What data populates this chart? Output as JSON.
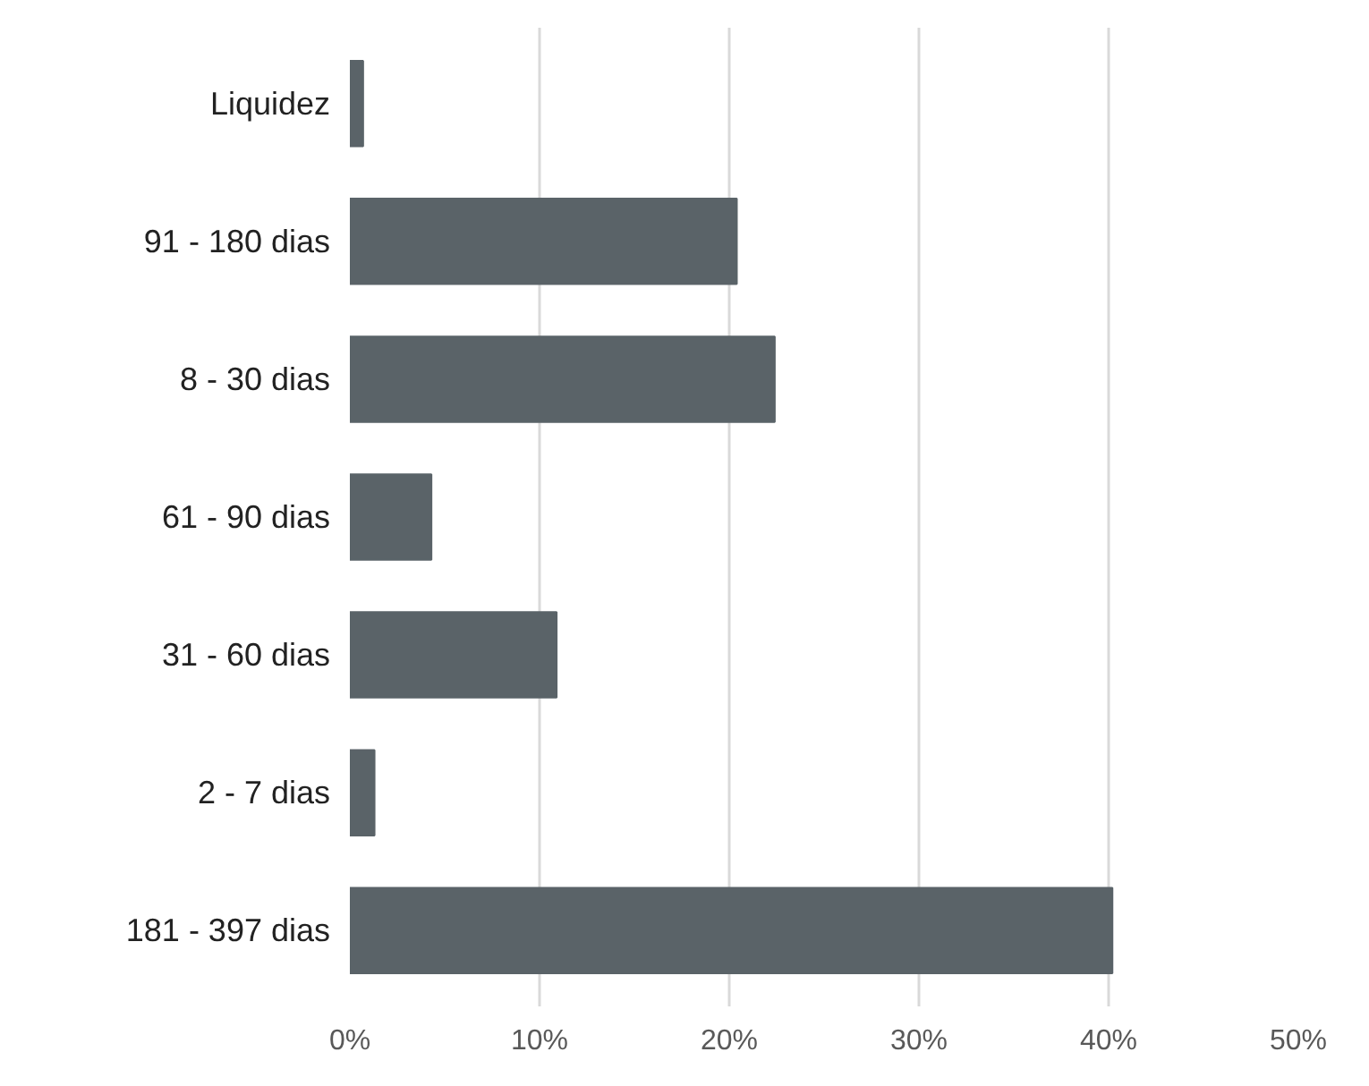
{
  "chart_data": {
    "type": "bar",
    "orientation": "horizontal",
    "categories": [
      "Liquidez",
      "91 - 180 dias",
      "8 - 30 dias",
      "61 - 90 dias",
      "31 - 60 dias",
      "2 - 7 dias",
      "181 - 397 dias"
    ],
    "values": [
      0.7,
      20.4,
      22.4,
      4.3,
      10.9,
      1.3,
      40.2
    ],
    "color": "#5a6368",
    "xlim": [
      0,
      50
    ],
    "xticks": [
      {
        "value": 0,
        "label": "0%"
      },
      {
        "value": 10,
        "label": "10%"
      },
      {
        "value": 20,
        "label": "20%"
      },
      {
        "value": 30,
        "label": "30%"
      },
      {
        "value": 40,
        "label": "40%"
      },
      {
        "value": 50,
        "label": "50%"
      }
    ],
    "grid": "x"
  }
}
